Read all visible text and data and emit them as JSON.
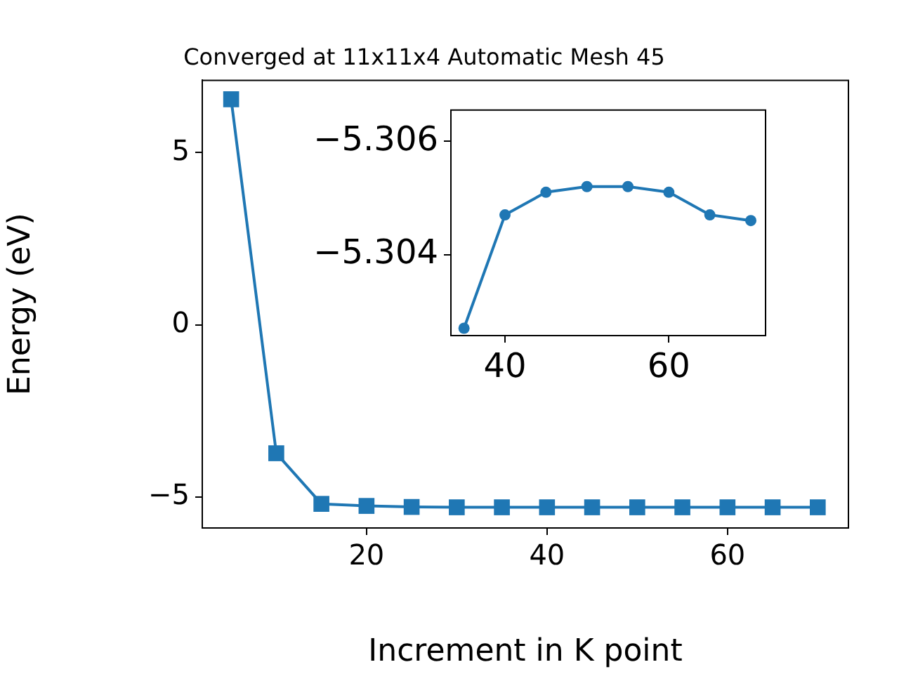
{
  "chart_data": [
    {
      "type": "line",
      "title": "Converged at 11x11x4 Automatic Mesh 45",
      "xlabel": "Increment in K point",
      "ylabel": "Energy (eV)",
      "x": [
        5,
        10,
        15,
        20,
        25,
        30,
        35,
        40,
        45,
        50,
        55,
        60,
        65,
        70
      ],
      "series": [
        {
          "color": "#1f77b4",
          "values": [
            6.55,
            -3.73,
            -5.2,
            -5.26,
            -5.29,
            -5.3,
            -5.3,
            -5.3,
            -5.3,
            -5.3,
            -5.3,
            -5.3,
            -5.3,
            -5.3
          ]
        }
      ],
      "xlim": [
        1.8,
        73.4
      ],
      "ylim": [
        -5.9,
        7.1
      ],
      "xticks": [
        20,
        40,
        60
      ],
      "yticks": [
        -5,
        0,
        5
      ],
      "marker": "square",
      "grid": false
    },
    {
      "type": "line",
      "x": [
        35,
        40,
        45,
        50,
        55,
        60,
        65,
        70
      ],
      "series": [
        {
          "color": "#1f77b4",
          "values": [
            -5.3027,
            -5.3047,
            -5.3051,
            -5.3052,
            -5.3052,
            -5.3051,
            -5.3047,
            -5.3046
          ]
        }
      ],
      "xlim": [
        33.4,
        71.8
      ],
      "ylim": [
        -5.30257,
        -5.30655
      ],
      "xticks": [
        40,
        60
      ],
      "yticks": [
        -5.306,
        -5.304
      ],
      "marker": "circle",
      "grid": false
    }
  ]
}
